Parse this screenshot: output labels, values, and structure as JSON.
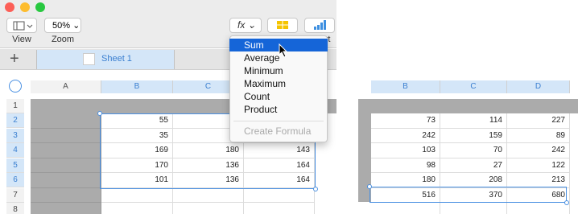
{
  "toolbar": {
    "view_label": "View",
    "zoom_label": "Zoom",
    "zoom_value": "50%",
    "formula_button": "fx",
    "chart_label": "Chart"
  },
  "sheet_tab": "Sheet 1",
  "menu": {
    "items": [
      "Sum",
      "Average",
      "Minimum",
      "Maximum",
      "Count",
      "Product"
    ],
    "disabled_item": "Create Formula"
  },
  "left_table": {
    "columns": [
      "A",
      "B",
      "C"
    ],
    "row_numbers": [
      "1",
      "2",
      "3",
      "4",
      "5",
      "6",
      "7",
      "8"
    ],
    "column_values": {
      "B": [
        "55",
        "35",
        "169",
        "170",
        "101"
      ],
      "C": [
        null,
        null,
        "180",
        "136",
        "136"
      ],
      "D": [
        null,
        null,
        "143",
        "164",
        "164"
      ]
    }
  },
  "right_table": {
    "columns": [
      "B",
      "C",
      "D"
    ],
    "rows": [
      [
        "73",
        "114",
        "227"
      ],
      [
        "242",
        "159",
        "89"
      ],
      [
        "103",
        "70",
        "242"
      ],
      [
        "98",
        "27",
        "122"
      ],
      [
        "180",
        "208",
        "213"
      ]
    ],
    "totals": [
      "516",
      "370",
      "680"
    ]
  }
}
